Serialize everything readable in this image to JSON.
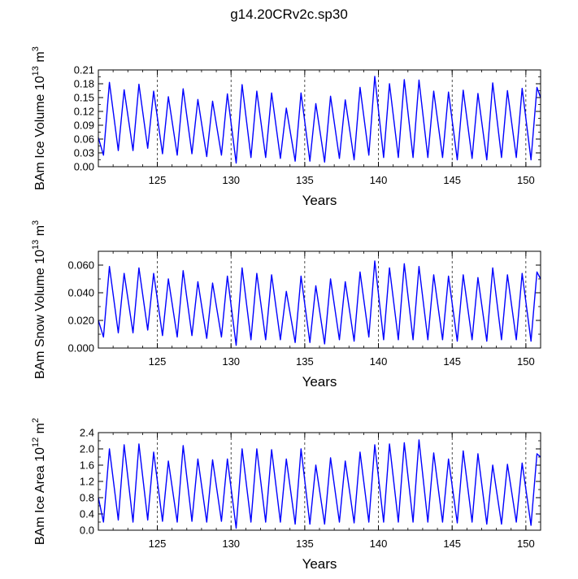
{
  "page_title": "g14.20CRv2c.sp30",
  "chart_data": [
    {
      "type": "line",
      "title": "",
      "ylabel_main": "BAm Ice Volume 10",
      "ylabel_exp": "13",
      "ylabel_unit": " m",
      "ylabel_unit_exp": "3",
      "xlabel": "Years",
      "xlim": [
        121,
        151
      ],
      "ylim": [
        0,
        0.21
      ],
      "xticks": [
        125,
        130,
        135,
        140,
        145,
        150
      ],
      "xtick_labels": [
        "125",
        "130",
        "135",
        "140",
        "145",
        "150"
      ],
      "yticks": [
        0,
        0.03,
        0.06,
        0.09,
        0.12,
        0.15,
        0.18,
        0.21
      ],
      "ytick_labels": [
        "0.00",
        "0.03",
        "0.06",
        "0.09",
        "0.12",
        "0.15",
        "0.18",
        "0.21"
      ],
      "vlines": [
        125,
        130,
        135,
        140,
        145,
        150
      ],
      "series": [
        {
          "color": "#0000ff",
          "x": [
            121.0,
            121.35,
            121.75,
            122.35,
            122.75,
            123.35,
            123.75,
            124.35,
            124.75,
            125.35,
            125.75,
            126.35,
            126.75,
            127.35,
            127.75,
            128.35,
            128.75,
            129.35,
            129.75,
            130.35,
            130.75,
            131.35,
            131.75,
            132.35,
            132.75,
            133.35,
            133.75,
            134.35,
            134.75,
            135.35,
            135.75,
            136.35,
            136.75,
            137.35,
            137.75,
            138.35,
            138.75,
            139.35,
            139.75,
            140.35,
            140.75,
            141.35,
            141.75,
            142.35,
            142.75,
            143.35,
            143.75,
            144.35,
            144.75,
            145.35,
            145.75,
            146.35,
            146.75,
            147.35,
            147.75,
            148.35,
            148.75,
            149.35,
            149.75,
            150.35,
            150.75,
            151.0
          ],
          "y": [
            0.063,
            0.025,
            0.183,
            0.035,
            0.167,
            0.035,
            0.179,
            0.04,
            0.164,
            0.028,
            0.152,
            0.025,
            0.169,
            0.028,
            0.146,
            0.022,
            0.142,
            0.025,
            0.158,
            0.008,
            0.178,
            0.02,
            0.164,
            0.02,
            0.16,
            0.018,
            0.127,
            0.012,
            0.16,
            0.012,
            0.137,
            0.01,
            0.153,
            0.018,
            0.145,
            0.015,
            0.172,
            0.025,
            0.196,
            0.02,
            0.18,
            0.02,
            0.189,
            0.02,
            0.188,
            0.02,
            0.164,
            0.02,
            0.162,
            0.015,
            0.166,
            0.018,
            0.159,
            0.015,
            0.182,
            0.02,
            0.165,
            0.02,
            0.17,
            0.015,
            0.172,
            0.15
          ]
        }
      ]
    },
    {
      "type": "line",
      "title": "",
      "ylabel_main": "BAm Snow Volume 10",
      "ylabel_exp": "13",
      "ylabel_unit": " m",
      "ylabel_unit_exp": "3",
      "xlabel": "Years",
      "xlim": [
        121,
        151
      ],
      "ylim": [
        0,
        0.07
      ],
      "xticks": [
        125,
        130,
        135,
        140,
        145,
        150
      ],
      "xtick_labels": [
        "125",
        "130",
        "135",
        "140",
        "145",
        "150"
      ],
      "yticks": [
        0,
        0.02,
        0.04,
        0.06
      ],
      "ytick_labels": [
        "0.000",
        "0.020",
        "0.040",
        "0.060"
      ],
      "vlines": [
        125,
        130,
        135,
        140,
        145,
        150
      ],
      "series": [
        {
          "color": "#0000ff",
          "x": [
            121.0,
            121.35,
            121.75,
            122.35,
            122.75,
            123.35,
            123.75,
            124.35,
            124.75,
            125.35,
            125.75,
            126.35,
            126.75,
            127.35,
            127.75,
            128.35,
            128.75,
            129.35,
            129.75,
            130.35,
            130.75,
            131.35,
            131.75,
            132.35,
            132.75,
            133.35,
            133.75,
            134.35,
            134.75,
            135.35,
            135.75,
            136.35,
            136.75,
            137.35,
            137.75,
            138.35,
            138.75,
            139.35,
            139.75,
            140.35,
            140.75,
            141.35,
            141.75,
            142.35,
            142.75,
            143.35,
            143.75,
            144.35,
            144.75,
            145.35,
            145.75,
            146.35,
            146.75,
            147.35,
            147.75,
            148.35,
            148.75,
            149.35,
            149.75,
            150.35,
            150.75,
            151.0
          ],
          "y": [
            0.02,
            0.008,
            0.059,
            0.011,
            0.054,
            0.011,
            0.058,
            0.013,
            0.054,
            0.009,
            0.05,
            0.008,
            0.056,
            0.009,
            0.048,
            0.007,
            0.047,
            0.008,
            0.052,
            0.002,
            0.058,
            0.006,
            0.054,
            0.006,
            0.053,
            0.006,
            0.041,
            0.004,
            0.052,
            0.004,
            0.045,
            0.003,
            0.05,
            0.006,
            0.048,
            0.005,
            0.055,
            0.008,
            0.063,
            0.006,
            0.058,
            0.006,
            0.061,
            0.006,
            0.059,
            0.006,
            0.053,
            0.006,
            0.052,
            0.005,
            0.053,
            0.006,
            0.051,
            0.005,
            0.058,
            0.006,
            0.053,
            0.006,
            0.054,
            0.005,
            0.055,
            0.05
          ]
        }
      ]
    },
    {
      "type": "line",
      "title": "",
      "ylabel_main": "BAm Ice Area 10",
      "ylabel_exp": "12",
      "ylabel_unit": " m",
      "ylabel_unit_exp": "2",
      "xlabel": "Years",
      "xlim": [
        121,
        151
      ],
      "ylim": [
        0,
        2.4
      ],
      "xticks": [
        125,
        130,
        135,
        140,
        145,
        150
      ],
      "xtick_labels": [
        "125",
        "130",
        "135",
        "140",
        "145",
        "150"
      ],
      "yticks": [
        0,
        0.4,
        0.8,
        1.2,
        1.6,
        2.0,
        2.4
      ],
      "ytick_labels": [
        "0.0",
        "0.4",
        "0.8",
        "1.2",
        "1.6",
        "2.0",
        "2.4"
      ],
      "vlines": [
        125,
        130,
        135,
        140,
        145,
        150
      ],
      "series": [
        {
          "color": "#0000ff",
          "x": [
            121.0,
            121.35,
            121.75,
            122.35,
            122.75,
            123.35,
            123.75,
            124.35,
            124.75,
            125.35,
            125.75,
            126.35,
            126.75,
            127.35,
            127.75,
            128.35,
            128.75,
            129.35,
            129.75,
            130.35,
            130.75,
            131.35,
            131.75,
            132.35,
            132.75,
            133.35,
            133.75,
            134.35,
            134.75,
            135.35,
            135.75,
            136.35,
            136.75,
            137.35,
            137.75,
            138.35,
            138.75,
            139.35,
            139.75,
            140.35,
            140.75,
            141.35,
            141.75,
            142.35,
            142.75,
            143.35,
            143.75,
            144.35,
            144.75,
            145.35,
            145.75,
            146.35,
            146.75,
            147.35,
            147.75,
            148.35,
            148.75,
            149.35,
            149.75,
            150.35,
            150.75,
            151.0
          ],
          "y": [
            0.8,
            0.2,
            2.0,
            0.25,
            2.1,
            0.2,
            2.12,
            0.25,
            1.92,
            0.22,
            1.7,
            0.2,
            2.08,
            0.22,
            1.75,
            0.2,
            1.73,
            0.22,
            1.75,
            0.05,
            2.0,
            0.2,
            2.0,
            0.2,
            1.98,
            0.2,
            1.75,
            0.15,
            2.0,
            0.15,
            1.6,
            0.15,
            1.78,
            0.2,
            1.7,
            0.18,
            1.92,
            0.2,
            2.1,
            0.2,
            2.12,
            0.2,
            2.15,
            0.2,
            2.22,
            0.2,
            1.9,
            0.2,
            1.75,
            0.18,
            1.95,
            0.2,
            1.88,
            0.15,
            1.6,
            0.15,
            1.62,
            0.2,
            1.65,
            0.12,
            1.88,
            1.8
          ]
        }
      ]
    }
  ]
}
